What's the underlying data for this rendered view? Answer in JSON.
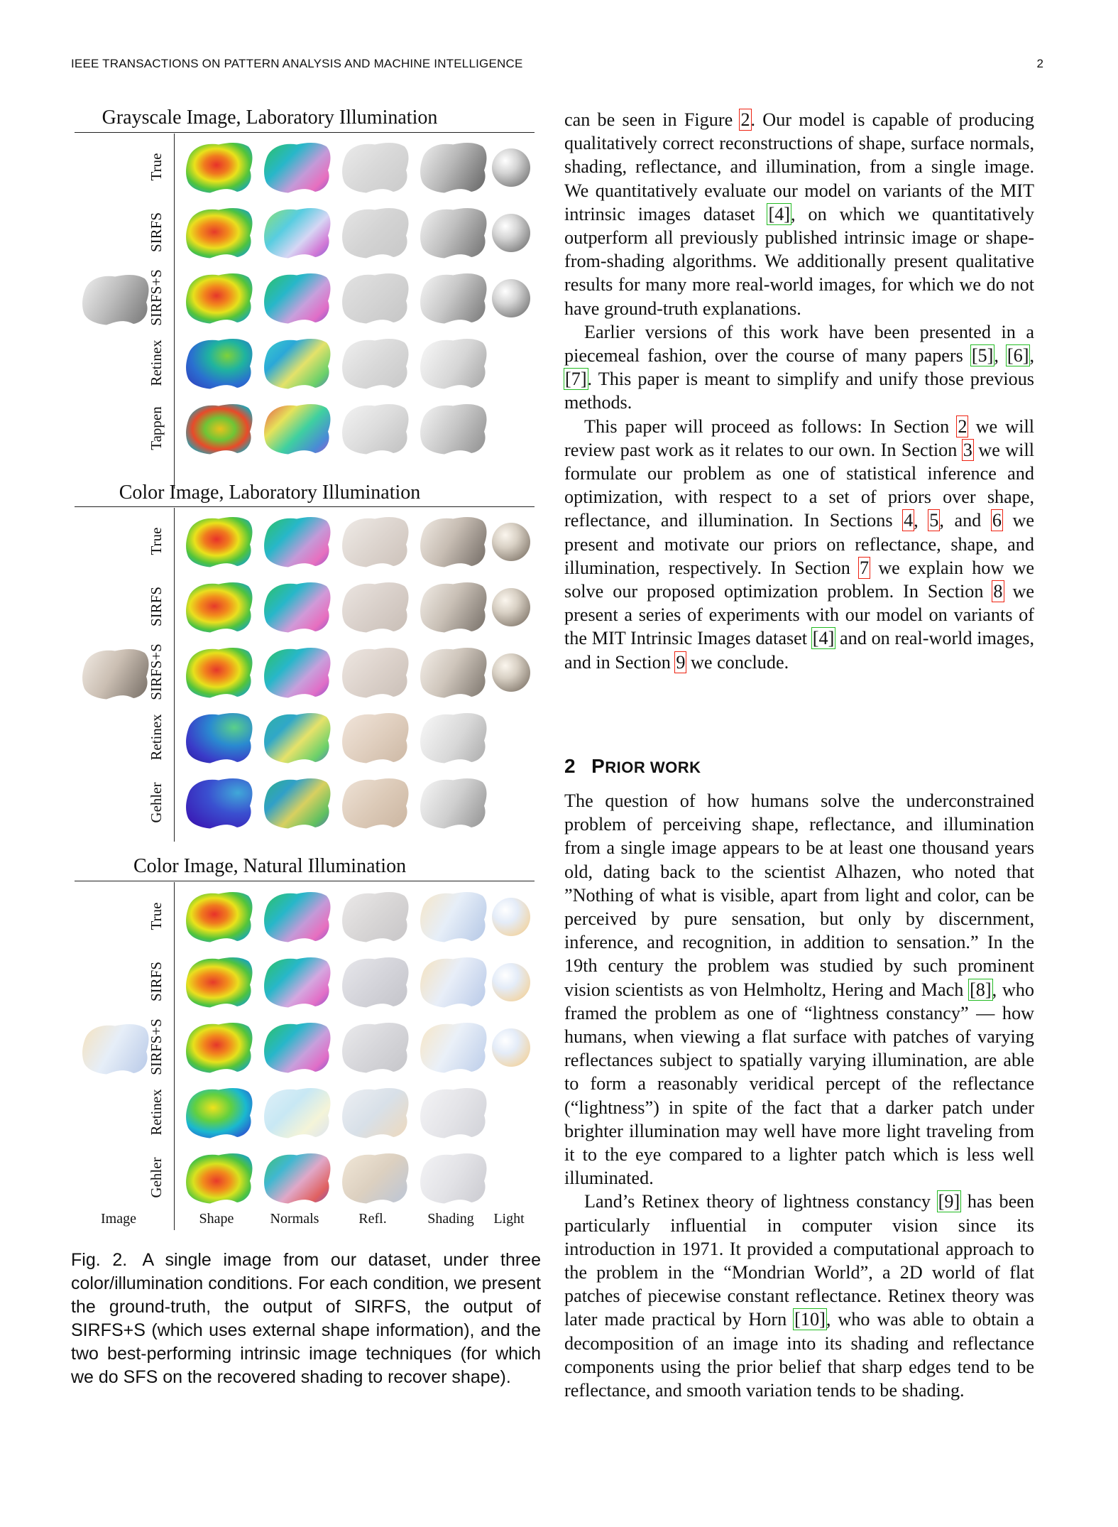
{
  "header": {
    "journal": "IEEE TRANSACTIONS ON PATTERN ANALYSIS AND MACHINE INTELLIGENCE",
    "page_number": "2"
  },
  "figure": {
    "panels": [
      {
        "title": "Grayscale Image, Laboratory Illumination",
        "rows": [
          "True",
          "SIRFS",
          "SIRFS+S",
          "Retinex",
          "Tappen"
        ]
      },
      {
        "title": "Color Image, Laboratory Illumination",
        "rows": [
          "True",
          "SIRFS",
          "SIRFS+S",
          "Retinex",
          "Gehler"
        ]
      },
      {
        "title": "Color Image, Natural Illumination",
        "rows": [
          "True",
          "SIRFS",
          "SIRFS+S",
          "Retinex",
          "Gehler"
        ]
      }
    ],
    "column_labels": [
      "Image",
      "Shape",
      "Normals",
      "Refl.",
      "Shading",
      "Light"
    ],
    "caption_label": "Fig. 2.",
    "caption_text": "A single image from our dataset, under three color/illumination conditions. For each condition, we present the ground-truth, the output of SIRFS, the output of SIRFS+S (which uses external shape information), and the two best-performing intrinsic image techniques (for which we do SFS on the recovered shading to recover shape)."
  },
  "body": {
    "p1_a": "can be seen in Figure ",
    "p1_ref1": "2",
    "p1_b": ". Our model is capable of producing qualitatively correct reconstructions of shape, surface normals, shading, reflectance, and illumination, from a single image. We quantitatively evaluate our model on variants of the MIT intrinsic images dataset ",
    "p1_ref2": "[4]",
    "p1_c": ", on which we quantitatively outperform all previously published intrinsic image or shape-from-shading algorithms. We additionally present qualitative results for many more real-world images, for which we do not have ground-truth explanations.",
    "p2_a": "Earlier versions of this work have been presented in a piecemeal fashion, over the course of many papers ",
    "p2_ref1": "[5]",
    "p2_s1": ", ",
    "p2_ref2": "[6]",
    "p2_s2": ", ",
    "p2_ref3": "[7]",
    "p2_b": ". This paper is meant to simplify and unify those previous methods.",
    "p3_a": "This paper will proceed as follows: In Section ",
    "p3_ref1": "2",
    "p3_b": " we will review past work as it relates to our own. In Section ",
    "p3_ref2": "3",
    "p3_c": " we will formulate our problem as one of statistical inference and optimization, with respect to a set of priors over shape, reflectance, and illumination. In Sections ",
    "p3_ref3": "4",
    "p3_s1": ", ",
    "p3_ref4": "5",
    "p3_s2": ", and ",
    "p3_ref5": "6",
    "p3_d": " we present and motivate our priors on reflectance, shape, and illumination, respectively. In Section ",
    "p3_ref6": "7",
    "p3_e": " we explain how we solve our proposed optimization problem. In Section ",
    "p3_ref7": "8",
    "p3_f": " we present a series of experiments with our model on variants of the MIT Intrinsic Images dataset ",
    "p3_ref8": "[4]",
    "p3_g": " and on real-world images, and in Section ",
    "p3_ref9": "9",
    "p3_h": " we conclude.",
    "section_number": "2",
    "section_title_cap1": "P",
    "section_title_rest1": "RIOR ",
    "section_title_cap2": "",
    "section_title_rest2": "WORK",
    "p4_a": "The question of how humans solve the underconstrained problem of perceiving shape, reflectance, and illumination from a single image appears to be at least one thousand years old, dating back to the scientist Alhazen, who noted that ”Nothing of what is visible, apart from light and color, can be perceived by pure sensation, but only by discernment, inference, and recognition, in addition to sensation.” In the 19th century the problem was studied by such prominent vision scientists as von Helmholtz, Hering and Mach ",
    "p4_ref1": "[8]",
    "p4_b": ", who framed the problem as one of “lightness constancy” — how humans, when viewing a flat surface with patches of varying reflectances subject to spatially varying illumination, are able to form a reasonably veridical percept of the reflectance (“lightness”) in spite of the fact that a darker patch under brighter illumination may well have more light traveling from it to the eye compared to a lighter patch which is less well illuminated.",
    "p5_a": "Land’s Retinex theory of lightness constancy ",
    "p5_ref1": "[9]",
    "p5_b": " has been particularly influential in computer vision since its introduction in 1971. It provided a computational approach to the problem in the “Mondrian World”, a 2D world of flat patches of piecewise constant reflectance. Retinex theory was later made practical by Horn ",
    "p5_ref2": "[10]",
    "p5_c": ", who was able to obtain a decomposition of an image into its shading and reflectance components using the prior belief that sharp edges tend to be reflectance, and smooth variation tends to be shading."
  }
}
